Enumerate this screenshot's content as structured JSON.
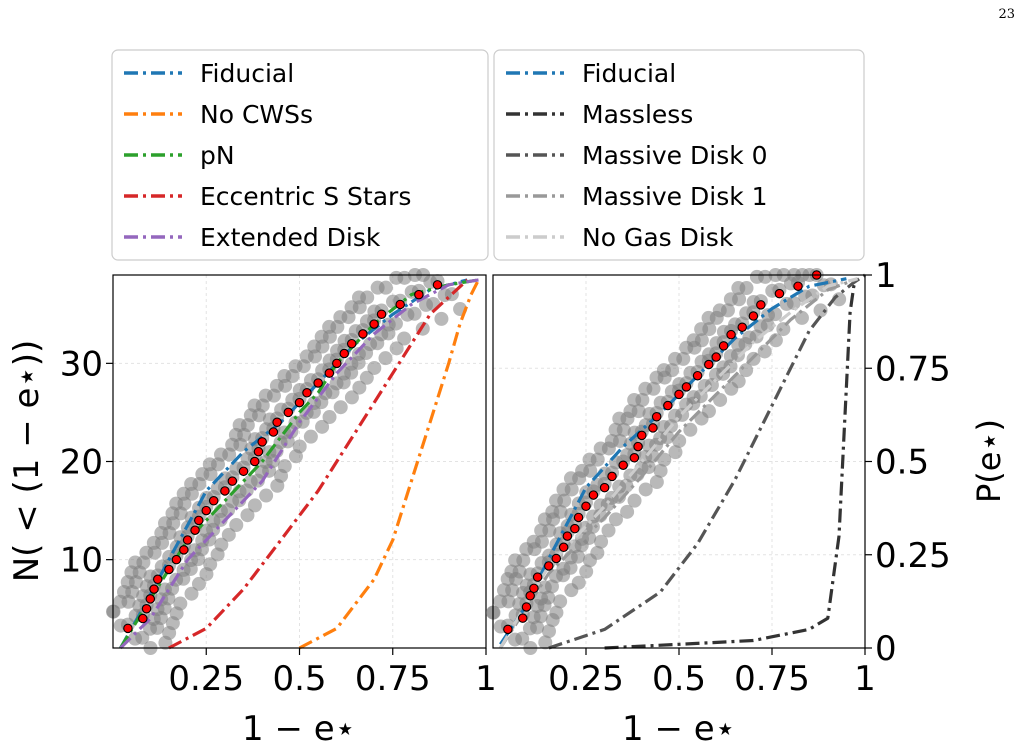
{
  "page_number": "23",
  "colors": {
    "fiducial": "#1f77b4",
    "no_cwss": "#ff7f0e",
    "pn": "#2ca02c",
    "eccentric": "#d62728",
    "extended": "#9467bd",
    "massless": "#333333",
    "massive0": "#555555",
    "massive1": "#999999",
    "nogas": "#cccccc",
    "obs_fill": "#ff0000",
    "band": "#808080"
  },
  "chart_data": [
    {
      "type": "line",
      "panel": "left",
      "xlabel": "1 − e⋆",
      "ylabel": "N( < (1 − e⋆))",
      "xlim": [
        0.0,
        1.0
      ],
      "ylim": [
        1,
        39
      ],
      "xticks": [
        "0.25",
        "0.5",
        "0.75",
        "1"
      ],
      "xtick_values": [
        0.25,
        0.5,
        0.75,
        1.0
      ],
      "yticks": [
        "10",
        "20",
        "30"
      ],
      "ytick_values": [
        10,
        20,
        30
      ],
      "grid": true,
      "legend_position": "above",
      "legend": [
        "Fiducial",
        "No CWSs",
        "pN",
        "Eccentric S Stars",
        "Extended Disk"
      ],
      "series": [
        {
          "name": "Fiducial",
          "color_key": "fiducial",
          "x": [
            0.02,
            0.08,
            0.15,
            0.25,
            0.35,
            0.45,
            0.55,
            0.65,
            0.75,
            0.85,
            0.95
          ],
          "y": [
            1,
            5,
            10,
            17,
            21,
            24,
            28,
            32,
            35,
            37.5,
            38.5
          ]
        },
        {
          "name": "No CWSs",
          "color_key": "no_cwss",
          "x": [
            0.5,
            0.6,
            0.7,
            0.75,
            0.8,
            0.85,
            0.9,
            0.93,
            0.96,
            0.98
          ],
          "y": [
            1,
            3,
            8,
            12,
            18,
            24,
            30,
            34,
            37,
            38.5
          ]
        },
        {
          "name": "pN",
          "color_key": "pn",
          "x": [
            0.02,
            0.1,
            0.2,
            0.3,
            0.4,
            0.5,
            0.55,
            0.6,
            0.7,
            0.8,
            0.9,
            0.98
          ],
          "y": [
            1,
            6,
            12,
            16,
            20,
            25,
            27,
            30,
            34,
            37,
            38,
            38.5
          ]
        },
        {
          "name": "Eccentric S Stars",
          "color_key": "eccentric",
          "x": [
            0.15,
            0.25,
            0.35,
            0.45,
            0.55,
            0.65,
            0.75,
            0.85,
            0.95
          ],
          "y": [
            1,
            3,
            7,
            12,
            17,
            23,
            29,
            35,
            38.5
          ]
        },
        {
          "name": "Extended Disk",
          "color_key": "extended",
          "x": [
            0.02,
            0.1,
            0.2,
            0.3,
            0.4,
            0.5,
            0.6,
            0.7,
            0.8,
            0.9,
            0.98
          ],
          "y": [
            1,
            4,
            10,
            14,
            18,
            24,
            29,
            33,
            36,
            38,
            38.5
          ]
        }
      ],
      "observed_points": {
        "x": [
          0.04,
          0.08,
          0.09,
          0.1,
          0.11,
          0.12,
          0.15,
          0.17,
          0.19,
          0.2,
          0.22,
          0.23,
          0.25,
          0.27,
          0.3,
          0.32,
          0.35,
          0.38,
          0.39,
          0.4,
          0.43,
          0.44,
          0.47,
          0.5,
          0.52,
          0.55,
          0.58,
          0.6,
          0.62,
          0.64,
          0.67,
          0.7,
          0.72,
          0.77,
          0.82,
          0.87
        ],
        "y": [
          3,
          4,
          5,
          6,
          7,
          8,
          9,
          10,
          11,
          12,
          13,
          14,
          15,
          16,
          17,
          18,
          19,
          20,
          21,
          22,
          23,
          24,
          25,
          26,
          27,
          28,
          29,
          30,
          31,
          32,
          33,
          34,
          35,
          36,
          37,
          38
        ]
      }
    },
    {
      "type": "line",
      "panel": "right",
      "xlabel": "1 − e⋆",
      "ylabel": "P(e⋆)",
      "xlim": [
        0.0,
        1.0
      ],
      "ylim": [
        0,
        1
      ],
      "xticks": [
        "0.25",
        "0.5",
        "0.75",
        "1"
      ],
      "xtick_values": [
        0.25,
        0.5,
        0.75,
        1.0
      ],
      "yticks": [
        "0",
        "0.25",
        "0.5",
        "0.75",
        "1"
      ],
      "ytick_values": [
        0,
        0.25,
        0.5,
        0.75,
        1
      ],
      "grid": true,
      "legend_position": "above",
      "legend": [
        "Fiducial",
        "Massless",
        "Massive Disk 0",
        "Massive Disk 1",
        "No Gas Disk"
      ],
      "series": [
        {
          "name": "Fiducial",
          "color_key": "fiducial",
          "x": [
            0.02,
            0.08,
            0.15,
            0.25,
            0.35,
            0.45,
            0.55,
            0.65,
            0.75,
            0.85,
            0.95
          ],
          "y": [
            0.01,
            0.1,
            0.24,
            0.43,
            0.54,
            0.63,
            0.73,
            0.83,
            0.91,
            0.97,
            0.99
          ]
        },
        {
          "name": "Massless",
          "color_key": "massless",
          "x": [
            0.3,
            0.5,
            0.7,
            0.85,
            0.9,
            0.93,
            0.95,
            0.96,
            0.97,
            0.98
          ],
          "y": [
            0,
            0.01,
            0.02,
            0.05,
            0.08,
            0.3,
            0.7,
            0.9,
            0.97,
            0.99
          ]
        },
        {
          "name": "Massive Disk 0",
          "color_key": "massive0",
          "x": [
            0.15,
            0.3,
            0.45,
            0.55,
            0.65,
            0.75,
            0.85,
            0.92,
            0.97,
            1.0
          ],
          "y": [
            0,
            0.05,
            0.15,
            0.28,
            0.45,
            0.65,
            0.85,
            0.94,
            0.98,
            1.0
          ]
        },
        {
          "name": "Massive Disk 1",
          "color_key": "massive1",
          "x": [
            0.02,
            0.15,
            0.3,
            0.4,
            0.5,
            0.6,
            0.7,
            0.8,
            0.9,
            0.98
          ],
          "y": [
            0,
            0.2,
            0.35,
            0.46,
            0.58,
            0.68,
            0.78,
            0.88,
            0.96,
            0.99
          ]
        },
        {
          "name": "No Gas Disk",
          "color_key": "nogas",
          "x": [
            0.02,
            0.15,
            0.3,
            0.4,
            0.5,
            0.6,
            0.7,
            0.8,
            0.9,
            0.98
          ],
          "y": [
            0,
            0.22,
            0.38,
            0.5,
            0.62,
            0.72,
            0.82,
            0.9,
            0.97,
            0.99
          ]
        }
      ],
      "observed_points": {
        "x": [
          0.04,
          0.08,
          0.09,
          0.1,
          0.11,
          0.12,
          0.15,
          0.17,
          0.19,
          0.2,
          0.22,
          0.23,
          0.25,
          0.27,
          0.3,
          0.32,
          0.35,
          0.38,
          0.39,
          0.4,
          0.43,
          0.44,
          0.47,
          0.5,
          0.52,
          0.55,
          0.58,
          0.6,
          0.62,
          0.64,
          0.67,
          0.7,
          0.72,
          0.77,
          0.82,
          0.87
        ],
        "y": [
          0.05,
          0.08,
          0.11,
          0.14,
          0.16,
          0.19,
          0.22,
          0.24,
          0.27,
          0.3,
          0.32,
          0.35,
          0.38,
          0.41,
          0.43,
          0.46,
          0.49,
          0.51,
          0.54,
          0.57,
          0.59,
          0.62,
          0.65,
          0.68,
          0.7,
          0.73,
          0.76,
          0.78,
          0.81,
          0.84,
          0.86,
          0.89,
          0.92,
          0.95,
          0.97,
          1.0
        ]
      }
    }
  ]
}
